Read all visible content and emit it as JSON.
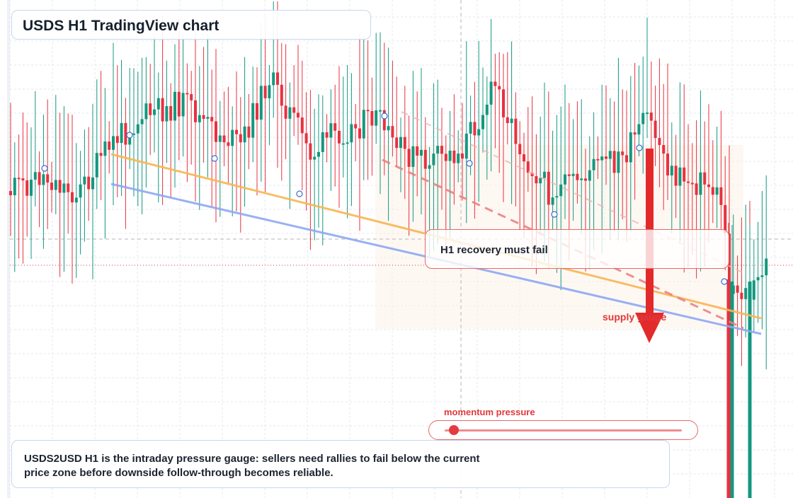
{
  "title": "USDS H1 TradingView chart",
  "callout": "H1 recovery must fail",
  "zone_label": "supply gauge",
  "gauge": {
    "label": "momentum pressure",
    "level": 0.04
  },
  "note": "USDS2USD H1 is the intraday pressure gauge: sellers need rallies to fail below the current price zone before downside follow-through becomes reliable.",
  "colors": {
    "up": "#13987f",
    "down": "#e8313f",
    "orange_trend": "#f7b654",
    "blue_trend": "#8ea8f2",
    "arrow": "#e32a2a",
    "accent": "#e0383c"
  },
  "chart_data": {
    "type": "candlestick",
    "timeframe": "H1",
    "symbol": "USDS2USD",
    "trendlines": [
      "orange-trendline",
      "blue-trendline",
      "red-dashed-trendline"
    ],
    "arrow": "down"
  }
}
